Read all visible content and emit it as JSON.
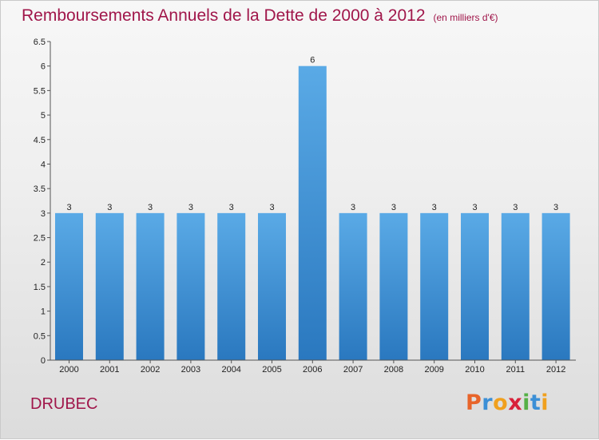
{
  "chart_data": {
    "type": "bar",
    "title": "Remboursements Annuels de la Dette de 2000 à 2012",
    "subtitle": "(en milliers d'€)",
    "categories": [
      "2000",
      "2001",
      "2002",
      "2003",
      "2004",
      "2005",
      "2006",
      "2007",
      "2008",
      "2009",
      "2010",
      "2011",
      "2012"
    ],
    "values": [
      3,
      3,
      3,
      3,
      3,
      3,
      6,
      3,
      3,
      3,
      3,
      3,
      3
    ],
    "ylim": [
      0,
      6.5
    ],
    "yticks": [
      "0",
      "0.5",
      "1",
      "1.5",
      "2",
      "2.5",
      "3",
      "3.5",
      "4",
      "4.5",
      "5",
      "5.5",
      "6",
      "6.5"
    ],
    "grid": false,
    "bar_color": "#4f9fdd"
  },
  "footer": {
    "commune": "DRUBEC",
    "logo_letters": [
      "P",
      "r",
      "o",
      "x",
      "i",
      "t",
      "i"
    ],
    "logo_colors": [
      "#e8642a",
      "#3b8fd6",
      "#f0a01e",
      "#d8213a",
      "#55b046",
      "#3b8fd6",
      "#f0a01e"
    ]
  }
}
